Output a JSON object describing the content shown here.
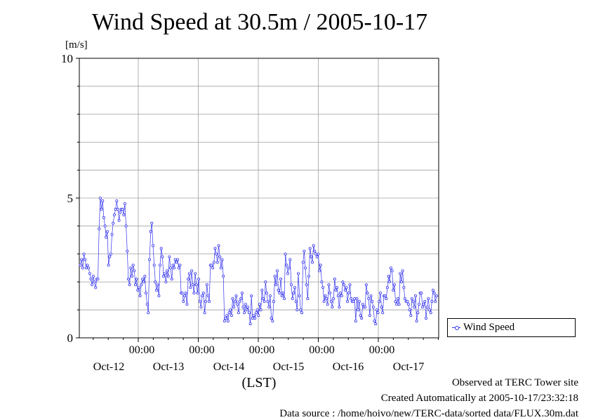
{
  "title": "Wind Speed at 30.5m / 2005-10-17",
  "chart_data": {
    "type": "line",
    "title": "Wind Speed at 30.5m / 2005-10-17",
    "ylabel": "[m/s]",
    "xlabel": "(LST)",
    "ylim": [
      0,
      10
    ],
    "y_ticks": [
      "0",
      "5",
      "10"
    ],
    "x_tick_time_labels": [
      "00:00",
      "00:00",
      "00:00",
      "00:00",
      "00:00"
    ],
    "x_tick_date_labels": [
      "Oct-12",
      "Oct-13",
      "Oct-14",
      "Oct-15",
      "Oct-16",
      "Oct-17"
    ],
    "grid": true,
    "legend_position": "right",
    "series": [
      {
        "name": "Wind Speed",
        "color": "#3333ee",
        "x_step_hours": 0.5,
        "values": [
          2.6,
          2.8,
          2.5,
          3.0,
          2.8,
          2.5,
          2.6,
          2.5,
          2.3,
          2.1,
          1.9,
          2.2,
          2.0,
          1.8,
          2.1,
          2.1,
          3.9,
          5.0,
          4.6,
          4.9,
          4.3,
          4.0,
          3.6,
          3.8,
          2.6,
          2.9,
          3.0,
          3.7,
          4.1,
          4.4,
          4.6,
          4.9,
          4.6,
          4.2,
          4.5,
          4.6,
          4.6,
          4.4,
          4.8,
          4.0,
          3.1,
          2.1,
          1.9,
          2.5,
          2.2,
          2.6,
          2.4,
          1.9,
          2.1,
          1.7,
          1.8,
          1.5,
          1.9,
          2.1,
          2.0,
          2.2,
          1.6,
          1.2,
          0.9,
          2.8,
          3.8,
          4.1,
          3.3,
          2.6,
          2.0,
          1.7,
          1.9,
          1.5,
          2.6,
          3.2,
          2.9,
          2.2,
          2.3,
          2.0,
          2.4,
          2.2,
          2.9,
          2.5,
          2.1,
          2.6,
          2.5,
          2.8,
          2.7,
          2.8,
          2.5,
          2.6,
          1.6,
          1.6,
          1.3,
          1.5,
          1.6,
          1.2,
          2.1,
          2.3,
          1.8,
          2.4,
          1.9,
          1.6,
          2.3,
          1.9,
          1.6,
          2.1,
          1.3,
          1.1,
          1.5,
          1.6,
          0.9,
          1.3,
          1.9,
          1.5,
          1.3,
          2.6,
          2.6,
          2.5,
          2.7,
          3.2,
          3.0,
          2.7,
          3.3,
          2.9,
          2.5,
          2.8,
          2.2,
          0.6,
          0.7,
          0.8,
          0.6,
          0.9,
          1.0,
          0.8,
          1.4,
          1.1,
          1.3,
          1.5,
          1.2,
          0.9,
          1.3,
          1.4,
          1.6,
          1.1,
          0.9,
          1.2,
          1.0,
          1.1,
          0.9,
          0.5,
          1.5,
          0.7,
          0.8,
          0.7,
          0.9,
          1.0,
          0.8,
          1.2,
          1.0,
          1.7,
          1.4,
          1.3,
          2.0,
          1.6,
          1.3,
          1.1,
          1.5,
          0.7,
          0.6,
          1.3,
          2.2,
          1.9,
          2.4,
          1.7,
          1.6,
          2.1,
          1.5,
          1.6,
          1.4,
          3.0,
          2.6,
          2.3,
          2.5,
          2.8,
          1.9,
          1.4,
          1.6,
          1.8,
          1.3,
          1.0,
          2.3,
          1.5,
          1.0,
          0.9,
          2.7,
          3.1,
          2.5,
          1.9,
          1.4,
          2.2,
          3.2,
          2.9,
          2.7,
          3.3,
          3.1,
          3.0,
          2.9,
          3.0,
          2.4,
          2.6,
          2.0,
          1.8,
          1.3,
          1.5,
          1.4,
          1.2,
          1.9,
          1.6,
          1.3,
          1.1,
          1.4,
          2.1,
          1.7,
          1.8,
          1.5,
          1.1,
          1.6,
          1.5,
          2.0,
          1.9,
          1.7,
          1.8,
          1.3,
          1.6,
          1.9,
          1.4,
          1.3,
          1.3,
          1.4,
          0.6,
          1.4,
          1.0,
          1.3,
          0.8,
          0.7,
          1.2,
          1.1,
          1.1,
          1.9,
          1.6,
          1.4,
          0.8,
          1.5,
          1.3,
          1.1,
          0.6,
          0.5,
          1.0,
          0.9,
          1.3,
          1.6,
          1.1,
          0.9,
          1.5,
          1.5,
          1.4,
          1.8,
          2.2,
          2.0,
          2.5,
          2.4,
          1.7,
          1.9,
          1.3,
          1.2,
          1.4,
          1.2,
          2.3,
          2.0,
          2.4,
          1.8,
          1.4,
          1.3,
          1.3,
          1.2,
          1.0,
          0.8,
          1.4,
          1.3,
          1.1,
          1.5,
          0.6,
          0.9,
          1.2,
          1.6,
          1.6,
          1.1,
          1.2,
          1.3,
          0.7,
          1.1,
          1.4,
          1.0,
          0.9,
          1.3,
          1.7,
          1.6,
          1.3,
          1.5
        ]
      }
    ]
  },
  "legend": {
    "label": "Wind Speed"
  },
  "footer": {
    "observed": "Observed at TERC Tower site",
    "created": "Created Automatically at 2005-10-17/23:32:18",
    "source": "Data source : /home/hoivo/new/TERC-data/sorted data/FLUX.30m.dat"
  }
}
